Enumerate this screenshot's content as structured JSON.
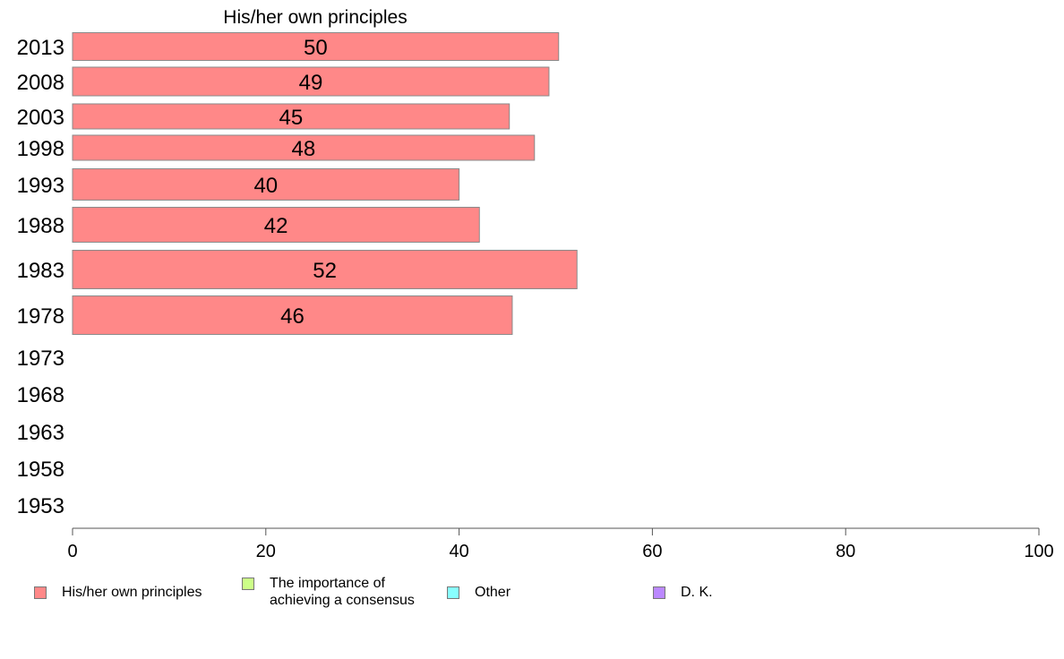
{
  "chart_data": {
    "type": "bar",
    "orientation": "horizontal",
    "panel_title": "His/her own principles",
    "categories": [
      "2013",
      "2008",
      "2003",
      "1998",
      "1993",
      "1988",
      "1983",
      "1978",
      "1973",
      "1968",
      "1963",
      "1958",
      "1953"
    ],
    "series": [
      {
        "name": "His/her own principles",
        "color": "#ff8888",
        "values": [
          50.3,
          49.3,
          45.2,
          47.8,
          40.0,
          42.1,
          52.2,
          45.5,
          null,
          null,
          null,
          null,
          null
        ],
        "labels": [
          "50",
          "49",
          "45",
          "48",
          "40",
          "42",
          "52",
          "46",
          "",
          "",
          "",
          "",
          ""
        ]
      }
    ],
    "xlim": [
      0,
      100
    ],
    "xticks": [
      "0",
      "20",
      "40",
      "60",
      "80",
      "100"
    ],
    "grid": false,
    "legend": {
      "position": "bottom",
      "items": [
        {
          "label": "His/her own principles",
          "color": "#ff8888"
        },
        {
          "label": "The importance of\nachieving a consensus",
          "color": "#ccff88"
        },
        {
          "label": "Other",
          "color": "#88ffff"
        },
        {
          "label": "D. K.",
          "color": "#bb88ff"
        }
      ]
    }
  }
}
